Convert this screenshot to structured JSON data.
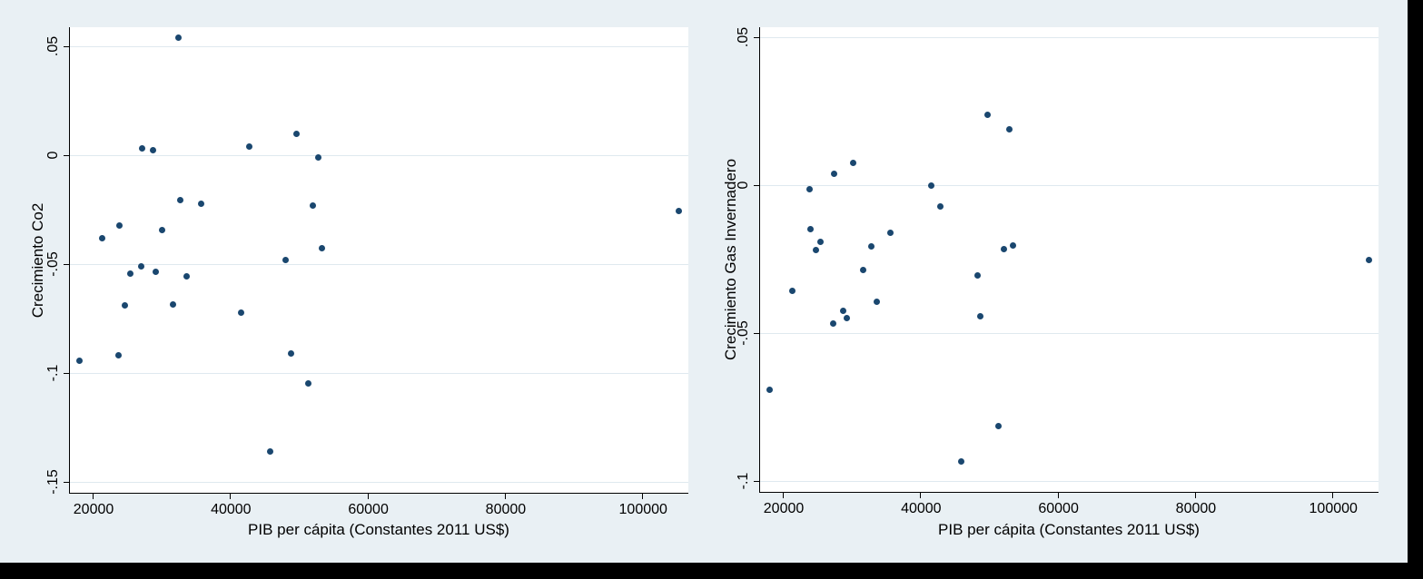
{
  "colors": {
    "canvas_background": "#000000",
    "panel_background": "#e9f0f4",
    "plot_background": "#ffffff",
    "gridline": "#dfe9ef",
    "axis": "#000000",
    "marker": "#1a476f"
  },
  "chart_data": [
    {
      "type": "scatter",
      "title": "",
      "xlabel": "PIB per cápita (Constantes 2011 US$)",
      "ylabel": "Crecimiento Co2",
      "xlim": [
        16560,
        106580
      ],
      "ylim": [
        -0.155,
        0.0588
      ],
      "grid": "horizontal",
      "legend": "none",
      "x_ticks": {
        "values": [
          20000,
          40000,
          60000,
          80000,
          100000
        ],
        "labels": [
          "20000",
          "40000",
          "60000",
          "80000",
          "100000"
        ]
      },
      "y_ticks": {
        "values": [
          0.05,
          0,
          -0.05,
          -0.1,
          -0.15
        ],
        "labels": [
          ".05",
          "0",
          "-.05",
          "-.1",
          "-.15"
        ]
      },
      "points": [
        [
          32400,
          0.054
        ],
        [
          27100,
          0.003
        ],
        [
          28600,
          0.0025
        ],
        [
          42700,
          0.004
        ],
        [
          49500,
          0.01
        ],
        [
          52700,
          -0.0012
        ],
        [
          32600,
          -0.0208
        ],
        [
          35700,
          -0.0221
        ],
        [
          51900,
          -0.0229
        ],
        [
          23800,
          -0.0321
        ],
        [
          30000,
          -0.0342
        ],
        [
          21200,
          -0.0379
        ],
        [
          53300,
          -0.0425
        ],
        [
          48000,
          -0.0483
        ],
        [
          27000,
          -0.0512
        ],
        [
          25300,
          -0.0542
        ],
        [
          29100,
          -0.0536
        ],
        [
          33500,
          -0.0556
        ],
        [
          24600,
          -0.0688
        ],
        [
          31500,
          -0.0685
        ],
        [
          41500,
          -0.0721
        ],
        [
          17900,
          -0.0942
        ],
        [
          23600,
          -0.092
        ],
        [
          48800,
          -0.0911
        ],
        [
          51200,
          -0.1046
        ],
        [
          45700,
          -0.136
        ],
        [
          105200,
          -0.0257
        ]
      ]
    },
    {
      "type": "scatter",
      "title": "",
      "xlabel": "PIB per cápita (Constantes 2011 US$)",
      "ylabel": "Crecimiento Gas Invernadero",
      "xlim": [
        16560,
        106580
      ],
      "ylim": [
        -0.1036,
        0.0535
      ],
      "grid": "horizontal",
      "legend": "none",
      "x_ticks": {
        "values": [
          20000,
          40000,
          60000,
          80000,
          100000
        ],
        "labels": [
          "20000",
          "40000",
          "60000",
          "80000",
          "100000"
        ]
      },
      "y_ticks": {
        "values": [
          0.05,
          0,
          -0.05,
          -0.1
        ],
        "labels": [
          ".05",
          "0",
          "-.05",
          "-.1"
        ]
      },
      "points": [
        [
          30100,
          0.0075
        ],
        [
          27300,
          0.004
        ],
        [
          23700,
          -0.0013
        ],
        [
          23900,
          -0.0148
        ],
        [
          25400,
          -0.0192
        ],
        [
          24700,
          -0.0219
        ],
        [
          32700,
          -0.0205
        ],
        [
          35500,
          -0.016
        ],
        [
          31500,
          -0.0286
        ],
        [
          49700,
          0.024
        ],
        [
          52800,
          0.019
        ],
        [
          41500,
          0.0
        ],
        [
          42800,
          -0.0071
        ],
        [
          52000,
          -0.0215
        ],
        [
          53400,
          -0.0202
        ],
        [
          48200,
          -0.0305
        ],
        [
          21200,
          -0.0355
        ],
        [
          33600,
          -0.0393
        ],
        [
          28700,
          -0.0425
        ],
        [
          29200,
          -0.0448
        ],
        [
          27200,
          -0.0468
        ],
        [
          48600,
          -0.0442
        ],
        [
          18000,
          -0.0691
        ],
        [
          45900,
          -0.0932
        ],
        [
          51200,
          -0.0813
        ],
        [
          105200,
          -0.0251
        ]
      ]
    }
  ]
}
